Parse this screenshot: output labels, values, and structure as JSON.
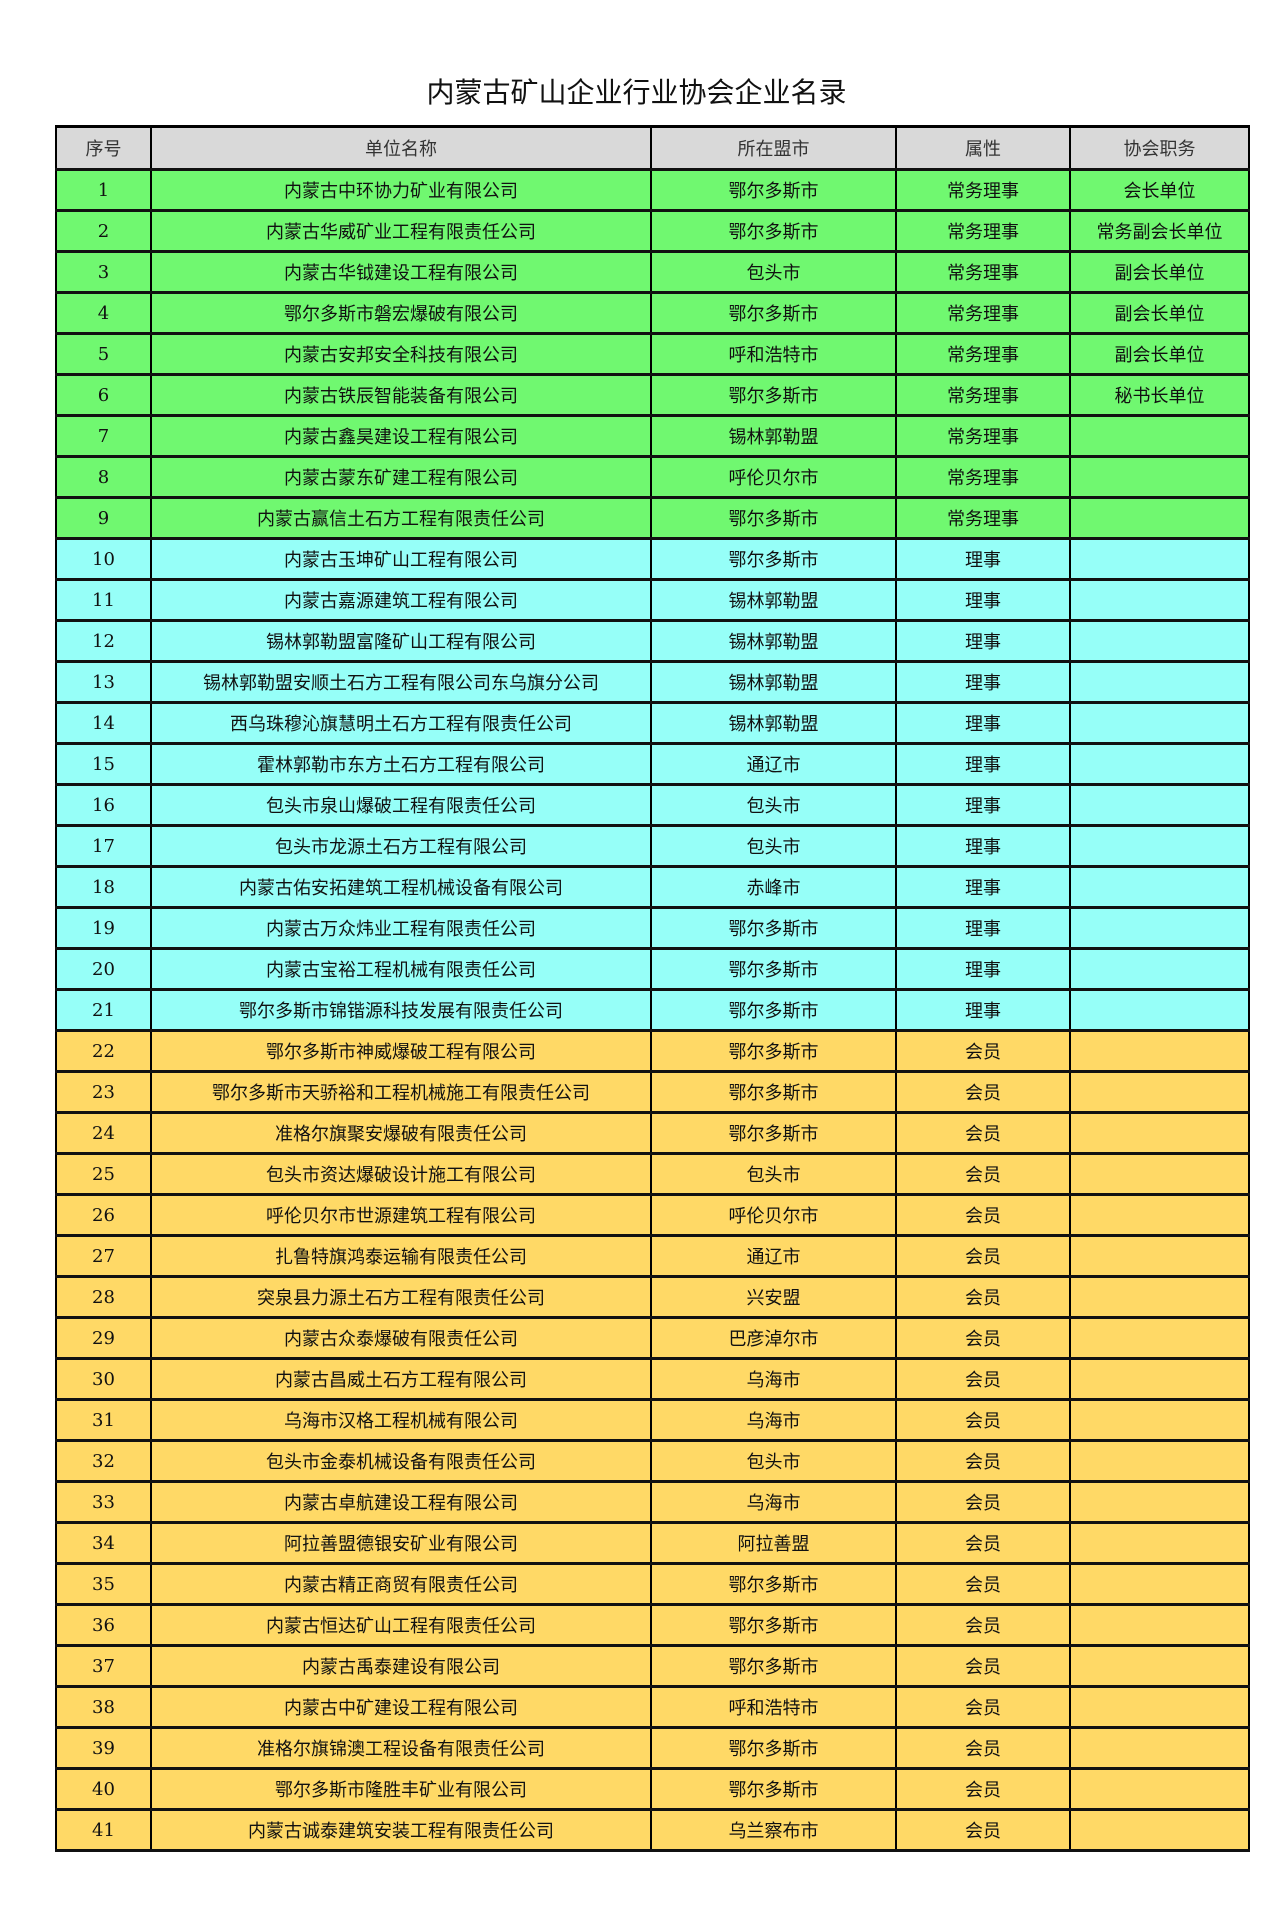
{
  "title": "内蒙古矿山企业行业协会企业名录",
  "colors": {
    "header": "#d9d9d9",
    "常务理事": "#70f870",
    "理事": "#96fff8",
    "会员": "#ffd966"
  },
  "columns": [
    "序号",
    "单位名称",
    "所在盟市",
    "属性",
    "协会职务"
  ],
  "rows": [
    [
      "1",
      "内蒙古中环协力矿业有限公司",
      "鄂尔多斯市",
      "常务理事",
      "会长单位"
    ],
    [
      "2",
      "内蒙古华威矿业工程有限责任公司",
      "鄂尔多斯市",
      "常务理事",
      "常务副会长单位"
    ],
    [
      "3",
      "内蒙古华钺建设工程有限公司",
      "包头市",
      "常务理事",
      "副会长单位"
    ],
    [
      "4",
      "鄂尔多斯市磐宏爆破有限公司",
      "鄂尔多斯市",
      "常务理事",
      "副会长单位"
    ],
    [
      "5",
      "内蒙古安邦安全科技有限公司",
      "呼和浩特市",
      "常务理事",
      "副会长单位"
    ],
    [
      "6",
      "内蒙古铁辰智能装备有限公司",
      "鄂尔多斯市",
      "常务理事",
      "秘书长单位"
    ],
    [
      "7",
      "内蒙古鑫昊建设工程有限公司",
      "锡林郭勒盟",
      "常务理事",
      ""
    ],
    [
      "8",
      "内蒙古蒙东矿建工程有限公司",
      "呼伦贝尔市",
      "常务理事",
      ""
    ],
    [
      "9",
      "内蒙古赢信土石方工程有限责任公司",
      "鄂尔多斯市",
      "常务理事",
      ""
    ],
    [
      "10",
      "内蒙古玉坤矿山工程有限公司",
      "鄂尔多斯市",
      "理事",
      ""
    ],
    [
      "11",
      "内蒙古嘉源建筑工程有限公司",
      "锡林郭勒盟",
      "理事",
      ""
    ],
    [
      "12",
      "锡林郭勒盟富隆矿山工程有限公司",
      "锡林郭勒盟",
      "理事",
      ""
    ],
    [
      "13",
      "锡林郭勒盟安顺土石方工程有限公司东乌旗分公司",
      "锡林郭勒盟",
      "理事",
      ""
    ],
    [
      "14",
      "西乌珠穆沁旗慧明土石方工程有限责任公司",
      "锡林郭勒盟",
      "理事",
      ""
    ],
    [
      "15",
      "霍林郭勒市东方土石方工程有限公司",
      "通辽市",
      "理事",
      ""
    ],
    [
      "16",
      "包头市泉山爆破工程有限责任公司",
      "包头市",
      "理事",
      ""
    ],
    [
      "17",
      "包头市龙源土石方工程有限公司",
      "包头市",
      "理事",
      ""
    ],
    [
      "18",
      "内蒙古佑安拓建筑工程机械设备有限公司",
      "赤峰市",
      "理事",
      ""
    ],
    [
      "19",
      "内蒙古万众炜业工程有限责任公司",
      "鄂尔多斯市",
      "理事",
      ""
    ],
    [
      "20",
      "内蒙古宝裕工程机械有限责任公司",
      "鄂尔多斯市",
      "理事",
      ""
    ],
    [
      "21",
      "鄂尔多斯市锦锴源科技发展有限责任公司",
      "鄂尔多斯市",
      "理事",
      ""
    ],
    [
      "22",
      "鄂尔多斯市神威爆破工程有限公司",
      "鄂尔多斯市",
      "会员",
      ""
    ],
    [
      "23",
      "鄂尔多斯市天骄裕和工程机械施工有限责任公司",
      "鄂尔多斯市",
      "会员",
      ""
    ],
    [
      "24",
      "准格尔旗聚安爆破有限责任公司",
      "鄂尔多斯市",
      "会员",
      ""
    ],
    [
      "25",
      "包头市资达爆破设计施工有限公司",
      "包头市",
      "会员",
      ""
    ],
    [
      "26",
      "呼伦贝尔市世源建筑工程有限公司",
      "呼伦贝尔市",
      "会员",
      ""
    ],
    [
      "27",
      "扎鲁特旗鸿泰运输有限责任公司",
      "通辽市",
      "会员",
      ""
    ],
    [
      "28",
      "突泉县力源土石方工程有限责任公司",
      "兴安盟",
      "会员",
      ""
    ],
    [
      "29",
      "内蒙古众泰爆破有限责任公司",
      "巴彦淖尔市",
      "会员",
      ""
    ],
    [
      "30",
      "内蒙古昌威土石方工程有限公司",
      "乌海市",
      "会员",
      ""
    ],
    [
      "31",
      "乌海市汉格工程机械有限公司",
      "乌海市",
      "会员",
      ""
    ],
    [
      "32",
      "包头市金泰机械设备有限责任公司",
      "包头市",
      "会员",
      ""
    ],
    [
      "33",
      "内蒙古卓航建设工程有限公司",
      "乌海市",
      "会员",
      ""
    ],
    [
      "34",
      "阿拉善盟德银安矿业有限公司",
      "阿拉善盟",
      "会员",
      ""
    ],
    [
      "35",
      "内蒙古精正商贸有限责任公司",
      "鄂尔多斯市",
      "会员",
      ""
    ],
    [
      "36",
      "内蒙古恒达矿山工程有限责任公司",
      "鄂尔多斯市",
      "会员",
      ""
    ],
    [
      "37",
      "内蒙古禹泰建设有限公司",
      "鄂尔多斯市",
      "会员",
      ""
    ],
    [
      "38",
      "内蒙古中矿建设工程有限公司",
      "呼和浩特市",
      "会员",
      ""
    ],
    [
      "39",
      "准格尔旗锦澳工程设备有限责任公司",
      "鄂尔多斯市",
      "会员",
      ""
    ],
    [
      "40",
      "鄂尔多斯市隆胜丰矿业有限公司",
      "鄂尔多斯市",
      "会员",
      ""
    ],
    [
      "41",
      "内蒙古诚泰建筑安装工程有限责任公司",
      "乌兰察布市",
      "会员",
      ""
    ]
  ]
}
